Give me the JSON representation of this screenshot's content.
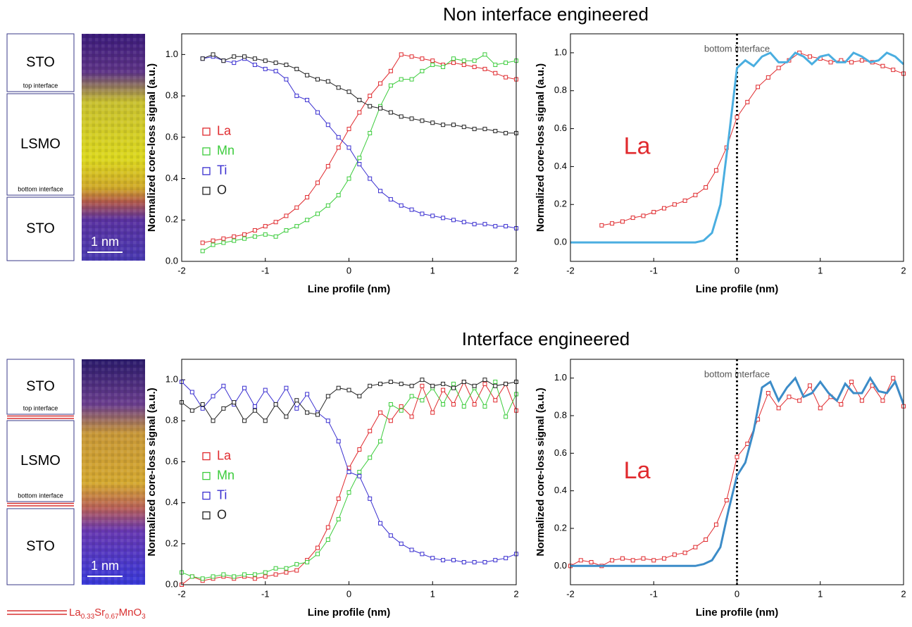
{
  "sections": [
    {
      "title": "Non interface engineered",
      "layers": [
        "STO",
        "LSMO",
        "STO"
      ],
      "interfaces": [
        "top interface",
        "bottom interface"
      ],
      "scale_bar": "1 nm"
    },
    {
      "title": "Interface engineered",
      "layers": [
        "STO",
        "LSMO",
        "STO"
      ],
      "interfaces": [
        "top interface",
        "bottom interface"
      ],
      "scale_bar": "1 nm"
    }
  ],
  "formula": [
    "La",
    "0.33",
    "Sr",
    "0.67",
    "Mn",
    "O",
    "3"
  ],
  "chart_data": [
    {
      "type": "line",
      "xlabel": "Line profile (nm)",
      "ylabel": "Normalized core-loss signal (a.u.)",
      "legend": true,
      "xlim": [
        -2,
        2
      ],
      "ylim": [
        0,
        1.1
      ],
      "xticks": [
        -2,
        -1,
        0,
        1,
        2
      ],
      "yticks": [
        {
          "value": 0,
          "label": "0.0"
        },
        0.2,
        0.4,
        0.6,
        0.8,
        {
          "value": 1,
          "label": "1.0"
        }
      ],
      "x": [
        -1.75,
        -1.625,
        -1.5,
        -1.375,
        -1.25,
        -1.125,
        -1,
        -0.875,
        -0.75,
        -0.625,
        -0.5,
        -0.375,
        -0.25,
        -0.125,
        0,
        0.125,
        0.25,
        0.375,
        0.5,
        0.625,
        0.75,
        0.875,
        1,
        1.125,
        1.25,
        1.375,
        1.5,
        1.625,
        1.75,
        1.875,
        2
      ],
      "series": [
        {
          "name": "La",
          "color": "#e02a2e",
          "markers": true,
          "values": [
            0.09,
            0.1,
            0.11,
            0.12,
            0.13,
            0.15,
            0.17,
            0.19,
            0.22,
            0.26,
            0.31,
            0.38,
            0.46,
            0.55,
            0.64,
            0.72,
            0.8,
            0.86,
            0.92,
            1.0,
            0.99,
            0.98,
            0.97,
            0.95,
            0.96,
            0.95,
            0.94,
            0.93,
            0.91,
            0.89,
            0.88
          ]
        },
        {
          "name": "Mn",
          "color": "#3ccc3c",
          "markers": true,
          "values": [
            0.05,
            0.08,
            0.09,
            0.1,
            0.11,
            0.12,
            0.13,
            0.12,
            0.15,
            0.17,
            0.2,
            0.23,
            0.27,
            0.32,
            0.4,
            0.5,
            0.62,
            0.75,
            0.85,
            0.88,
            0.88,
            0.92,
            0.95,
            0.94,
            0.98,
            0.97,
            0.97,
            1.0,
            0.95,
            0.96,
            0.97
          ]
        },
        {
          "name": "Ti",
          "color": "#3a2fd0",
          "markers": true,
          "values": [
            0.98,
            0.99,
            0.97,
            0.96,
            0.98,
            0.95,
            0.93,
            0.92,
            0.88,
            0.8,
            0.78,
            0.72,
            0.66,
            0.6,
            0.55,
            0.47,
            0.4,
            0.34,
            0.3,
            0.27,
            0.25,
            0.23,
            0.22,
            0.21,
            0.2,
            0.19,
            0.18,
            0.18,
            0.17,
            0.17,
            0.16
          ]
        },
        {
          "name": "O",
          "color": "#222222",
          "markers": true,
          "values": [
            0.98,
            1.0,
            0.97,
            0.99,
            0.99,
            0.98,
            0.97,
            0.96,
            0.95,
            0.93,
            0.9,
            0.88,
            0.87,
            0.84,
            0.82,
            0.78,
            0.75,
            0.74,
            0.72,
            0.7,
            0.69,
            0.68,
            0.67,
            0.66,
            0.66,
            0.65,
            0.64,
            0.64,
            0.63,
            0.62,
            0.62
          ]
        }
      ]
    },
    {
      "type": "line",
      "xlabel": "Line profile (nm)",
      "ylabel": "Normalized core-loss signal (a.u.)",
      "legend": false,
      "xlim": [
        -2,
        2
      ],
      "ylim": [
        -0.1,
        1.1
      ],
      "xticks": [
        -2,
        -1,
        0,
        1,
        2
      ],
      "yticks": [
        {
          "value": 0,
          "label": "0.0"
        },
        0.2,
        0.4,
        0.6,
        0.8,
        {
          "value": 1,
          "label": "1.0"
        }
      ],
      "vline": {
        "x": 0,
        "label": "bottom interface"
      },
      "series": [
        {
          "name": "La",
          "color": "#e02a2e",
          "markers": true,
          "x": [
            -1.625,
            -1.5,
            -1.375,
            -1.25,
            -1.125,
            -1,
            -0.875,
            -0.75,
            -0.625,
            -0.5,
            -0.375,
            -0.25,
            -0.125,
            0,
            0.125,
            0.25,
            0.375,
            0.5,
            0.625,
            0.75,
            0.875,
            1,
            1.125,
            1.25,
            1.375,
            1.5,
            1.625,
            1.75,
            1.875,
            2
          ],
          "values": [
            0.09,
            0.1,
            0.11,
            0.13,
            0.14,
            0.16,
            0.18,
            0.2,
            0.22,
            0.25,
            0.29,
            0.38,
            0.5,
            0.66,
            0.74,
            0.82,
            0.87,
            0.92,
            0.96,
            1.0,
            0.98,
            0.97,
            0.95,
            0.96,
            0.95,
            0.96,
            0.95,
            0.93,
            0.91,
            0.89
          ]
        },
        {
          "color": "#4aaee0",
          "markers": false,
          "x": [
            -2,
            -1.9,
            -1.8,
            -1.7,
            -1.6,
            -1.5,
            -1.4,
            -1.3,
            -1.2,
            -1.1,
            -1,
            -0.9,
            -0.8,
            -0.7,
            -0.6,
            -0.5,
            -0.4,
            -0.3,
            -0.2,
            -0.1,
            0,
            0.1,
            0.2,
            0.3,
            0.4,
            0.5,
            0.6,
            0.7,
            0.8,
            0.9,
            1,
            1.1,
            1.2,
            1.3,
            1.4,
            1.5,
            1.6,
            1.7,
            1.8,
            1.9,
            2
          ],
          "values": [
            0,
            0,
            0,
            0,
            0,
            0,
            0,
            0,
            0,
            0,
            0,
            0,
            0,
            0,
            0,
            0,
            0.01,
            0.05,
            0.2,
            0.55,
            0.92,
            0.96,
            0.93,
            0.98,
            1.0,
            0.95,
            0.95,
            1.0,
            0.98,
            0.94,
            0.98,
            0.99,
            0.95,
            0.95,
            1.0,
            0.98,
            0.95,
            0.96,
            1.0,
            0.98,
            0.94
          ]
        }
      ]
    },
    {
      "type": "line",
      "xlabel": "Line profile (nm)",
      "ylabel": "Normalized core-loss signal (a.u.)",
      "legend": true,
      "xlim": [
        -2,
        2
      ],
      "ylim": [
        0,
        1.1
      ],
      "xticks": [
        -2,
        -1,
        0,
        1,
        2
      ],
      "yticks": [
        {
          "value": 0,
          "label": "0.0"
        },
        0.2,
        0.4,
        0.6,
        0.8,
        {
          "value": 1,
          "label": "1.0"
        }
      ],
      "x": [
        -2,
        -1.875,
        -1.75,
        -1.625,
        -1.5,
        -1.375,
        -1.25,
        -1.125,
        -1,
        -0.875,
        -0.75,
        -0.625,
        -0.5,
        -0.375,
        -0.25,
        -0.125,
        0,
        0.125,
        0.25,
        0.375,
        0.5,
        0.625,
        0.75,
        0.875,
        1,
        1.125,
        1.25,
        1.375,
        1.5,
        1.625,
        1.75,
        1.875,
        2
      ],
      "series": [
        {
          "name": "La",
          "color": "#e02a2e",
          "markers": true,
          "values": [
            0.0,
            0.04,
            0.02,
            0.03,
            0.04,
            0.03,
            0.04,
            0.03,
            0.04,
            0.05,
            0.06,
            0.07,
            0.12,
            0.18,
            0.28,
            0.42,
            0.57,
            0.66,
            0.75,
            0.84,
            0.8,
            0.87,
            0.82,
            0.97,
            0.84,
            0.95,
            0.88,
            0.99,
            0.88,
            0.98,
            0.9,
            0.98,
            0.85
          ]
        },
        {
          "name": "Mn",
          "color": "#3ccc3c",
          "markers": true,
          "values": [
            0.06,
            0.04,
            0.03,
            0.04,
            0.05,
            0.04,
            0.05,
            0.05,
            0.06,
            0.08,
            0.08,
            0.1,
            0.11,
            0.15,
            0.22,
            0.32,
            0.45,
            0.55,
            0.62,
            0.7,
            0.88,
            0.85,
            0.92,
            0.9,
            0.96,
            0.88,
            0.98,
            0.87,
            0.96,
            0.87,
            0.99,
            0.82,
            0.93
          ]
        },
        {
          "name": "Ti",
          "color": "#3a2fd0",
          "markers": true,
          "values": [
            0.99,
            0.94,
            0.86,
            0.92,
            0.97,
            0.88,
            0.96,
            0.87,
            0.95,
            0.88,
            0.96,
            0.86,
            0.93,
            0.84,
            0.8,
            0.7,
            0.55,
            0.53,
            0.42,
            0.3,
            0.24,
            0.2,
            0.17,
            0.15,
            0.13,
            0.12,
            0.12,
            0.11,
            0.11,
            0.11,
            0.12,
            0.13,
            0.15
          ]
        },
        {
          "name": "O",
          "color": "#222222",
          "markers": true,
          "values": [
            0.89,
            0.85,
            0.88,
            0.8,
            0.86,
            0.89,
            0.8,
            0.85,
            0.8,
            0.88,
            0.82,
            0.9,
            0.84,
            0.83,
            0.92,
            0.96,
            0.95,
            0.92,
            0.97,
            0.98,
            0.99,
            0.98,
            0.97,
            1.0,
            0.97,
            0.98,
            0.96,
            0.99,
            0.97,
            1.0,
            0.97,
            0.98,
            0.99
          ]
        }
      ]
    },
    {
      "type": "line",
      "xlabel": "Line profile (nm)",
      "ylabel": "Normalized core-loss signal (a.u.)",
      "legend": false,
      "xlim": [
        -2,
        2
      ],
      "ylim": [
        -0.1,
        1.1
      ],
      "xticks": [
        -2,
        -1,
        0,
        1,
        2
      ],
      "yticks": [
        {
          "value": 0,
          "label": "0.0"
        },
        0.2,
        0.4,
        0.6,
        0.8,
        {
          "value": 1,
          "label": "1.0"
        }
      ],
      "vline": {
        "x": 0,
        "label": "bottom interface"
      },
      "series": [
        {
          "name": "La",
          "color": "#e02a2e",
          "markers": true,
          "x": [
            -2,
            -1.875,
            -1.75,
            -1.625,
            -1.5,
            -1.375,
            -1.25,
            -1.125,
            -1,
            -0.875,
            -0.75,
            -0.625,
            -0.5,
            -0.375,
            -0.25,
            -0.125,
            0,
            0.125,
            0.25,
            0.375,
            0.5,
            0.625,
            0.75,
            0.875,
            1,
            1.125,
            1.25,
            1.375,
            1.5,
            1.625,
            1.75,
            1.875,
            2
          ],
          "values": [
            0.0,
            0.03,
            0.02,
            0.0,
            0.03,
            0.04,
            0.03,
            0.04,
            0.03,
            0.04,
            0.06,
            0.07,
            0.1,
            0.14,
            0.22,
            0.35,
            0.58,
            0.65,
            0.78,
            0.92,
            0.84,
            0.9,
            0.88,
            0.96,
            0.84,
            0.9,
            0.86,
            0.98,
            0.88,
            0.96,
            0.88,
            1.0,
            0.85
          ]
        },
        {
          "color": "#3c8cc8",
          "markers": false,
          "x": [
            -2,
            -1.9,
            -1.8,
            -1.7,
            -1.6,
            -1.5,
            -1.4,
            -1.3,
            -1.2,
            -1.1,
            -1,
            -0.9,
            -0.8,
            -0.7,
            -0.6,
            -0.5,
            -0.4,
            -0.3,
            -0.2,
            -0.1,
            0,
            0.1,
            0.2,
            0.3,
            0.4,
            0.5,
            0.6,
            0.7,
            0.8,
            0.9,
            1,
            1.1,
            1.2,
            1.3,
            1.4,
            1.5,
            1.6,
            1.7,
            1.8,
            1.9,
            2
          ],
          "values": [
            0,
            0,
            0,
            0,
            0,
            0,
            0,
            0,
            0,
            0,
            0,
            0,
            0,
            0,
            0,
            0,
            0.01,
            0.03,
            0.1,
            0.3,
            0.48,
            0.55,
            0.72,
            0.95,
            0.98,
            0.88,
            0.95,
            1.0,
            0.9,
            0.92,
            0.98,
            0.92,
            0.88,
            0.97,
            0.92,
            0.92,
            1.0,
            0.93,
            0.92,
            0.98,
            0.86
          ]
        }
      ]
    }
  ]
}
